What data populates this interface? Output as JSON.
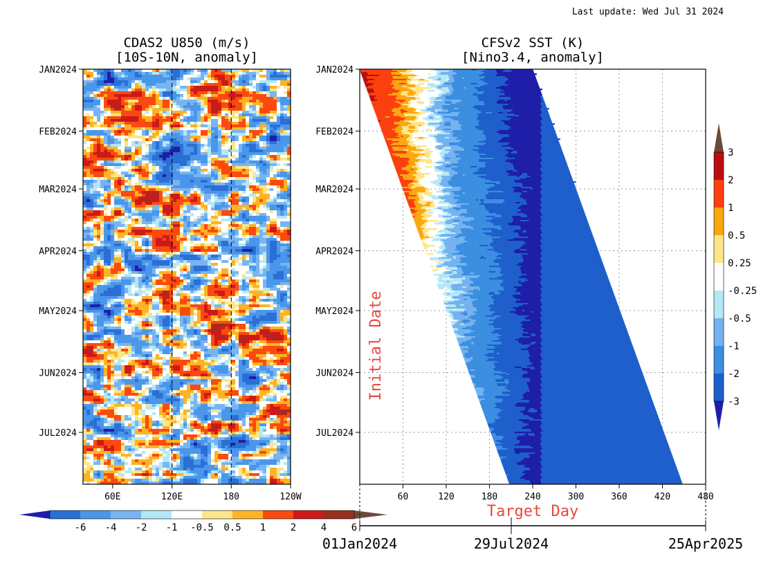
{
  "last_update": "Last update: Wed Jul 31 2024",
  "colors": {
    "levels_left": [
      "#1e1ea8",
      "#2b6fd6",
      "#4a96ea",
      "#7ab4f0",
      "#b4e8f6",
      "#ffffff",
      "#fde68a",
      "#fbb425",
      "#fb4a10",
      "#cc1a1a",
      "#983020",
      "#6b4a3a"
    ],
    "levels_right": [
      "#1e1ea8",
      "#1e5fcc",
      "#3b8ee0",
      "#75b2f0",
      "#b4e8f6",
      "#ffffff",
      "#fde68a",
      "#fba710",
      "#fb4010",
      "#b81010",
      "#6b4a3a"
    ]
  },
  "chart_data": [
    {
      "type": "heatmap",
      "title_line1": "CDAS2 U850 (m/s)",
      "title_line2": "[10S-10N, anomaly]",
      "x_ticks": [
        "60E",
        "120E",
        "180",
        "120W"
      ],
      "x_tick_values": [
        60,
        120,
        180,
        240
      ],
      "xlim": [
        30,
        240
      ],
      "dashed_lines_at": [
        120,
        180
      ],
      "y_ticks": [
        "JAN2024",
        "FEB2024",
        "MAR2024",
        "APR2024",
        "MAY2024",
        "JUN2024",
        "JUL2024"
      ],
      "ylim_days": [
        0,
        208
      ],
      "colorbar": {
        "labels": [
          "-6",
          "-4",
          "-2",
          "-1",
          "-0.5",
          "0.5",
          "1",
          "2",
          "4",
          "6"
        ]
      }
    },
    {
      "type": "heatmap",
      "title_line1": "CFSv2 SST (K)",
      "title_line2": "[Nino3.4, anomaly]",
      "x_ticks": [
        "60",
        "120",
        "180",
        "240",
        "300",
        "360",
        "420",
        "480"
      ],
      "x_tick_values": [
        60,
        120,
        180,
        240,
        300,
        360,
        420,
        480
      ],
      "xlim": [
        0,
        480
      ],
      "xlabel": "Target Day",
      "ylabel": "Initial Date",
      "y_ticks": [
        "JAN2024",
        "FEB2024",
        "MAR2024",
        "APR2024",
        "MAY2024",
        "JUN2024",
        "JUL2024"
      ],
      "ylim_days": [
        0,
        208
      ],
      "date_axis": [
        "01Jan2024",
        "29Jul2024",
        "25Apr2025"
      ],
      "colorbar": {
        "labels": [
          "3",
          "2",
          "1",
          "0.5",
          "0.25",
          "-0.25",
          "-0.5",
          "-1",
          "-2",
          "-3"
        ]
      }
    }
  ]
}
